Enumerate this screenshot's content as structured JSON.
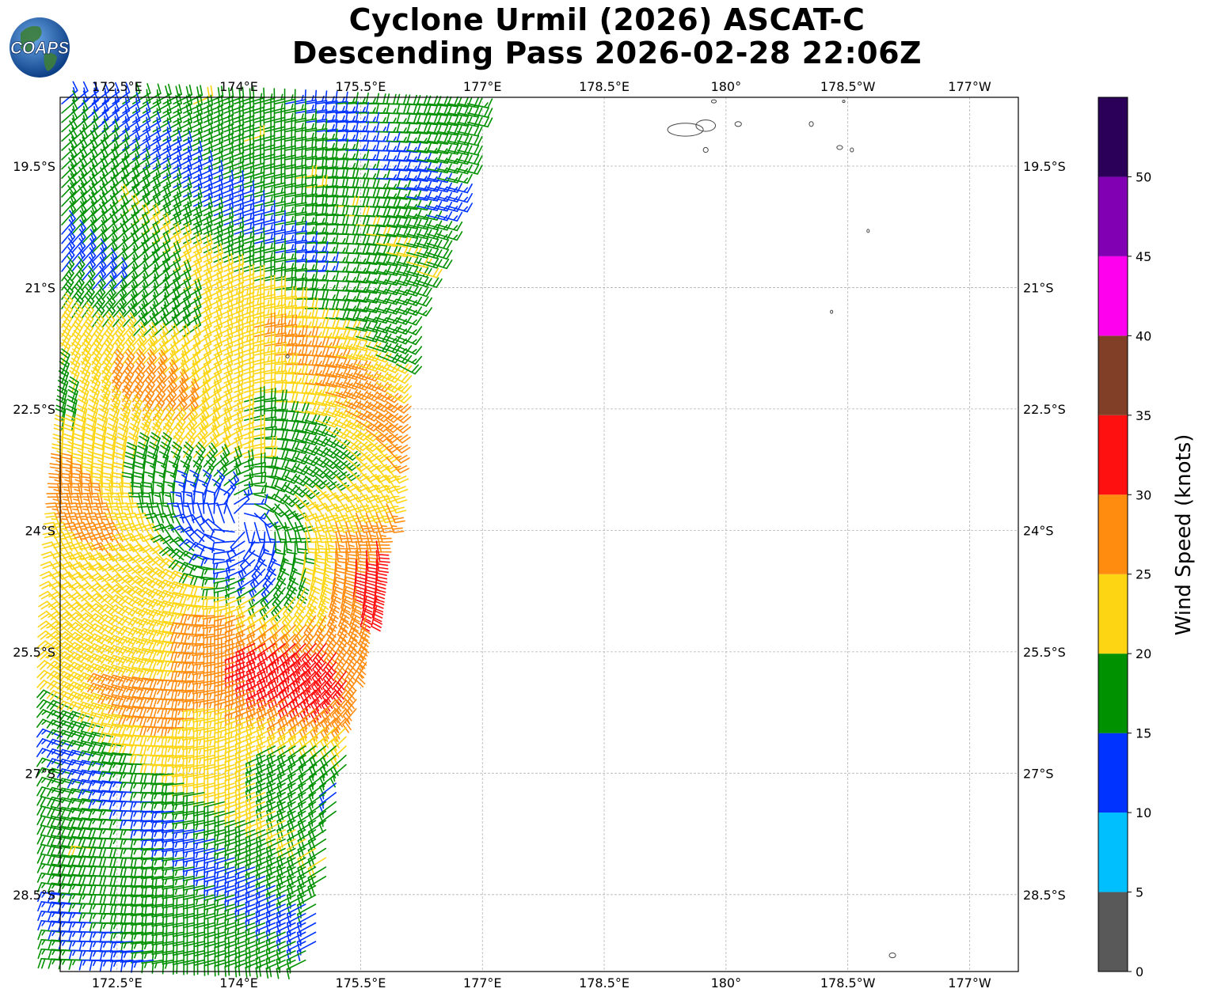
{
  "title": {
    "line1": "Cyclone Urmil (2026) ASCAT-C",
    "line2": "Descending Pass 2026-02-28 22:06Z"
  },
  "logo": {
    "text": "COAPS",
    "colors": {
      "ocean": "#1f5fae",
      "land": "#3d7d3a"
    }
  },
  "map": {
    "extent": {
      "lon_min": 171.8,
      "lon_max": 183.6,
      "lat_min": -29.45,
      "lat_max": -18.65
    },
    "top_lon_labels": [
      "172.5°E",
      "174°E",
      "175.5°E",
      "177°E",
      "178.5°E",
      "180°",
      "178.5°W",
      "177°W"
    ],
    "bottom_lon_labels": [
      "172.5°E",
      "174°E",
      "175.5°E",
      "177°E",
      "178.5°E",
      "180°",
      "178.5°W",
      "177°W"
    ],
    "lon_ticks": [
      172.5,
      174,
      175.5,
      177,
      178.5,
      180,
      181.5,
      183
    ],
    "left_lat_labels": [
      "19.5°S",
      "21°S",
      "22.5°S",
      "24°S",
      "25.5°S",
      "27°S",
      "28.5°S"
    ],
    "right_lat_labels": [
      "19.5°S",
      "21°S",
      "22.5°S",
      "24°S",
      "25.5°S",
      "27°S",
      "28.5°S"
    ],
    "lat_ticks": [
      -19.5,
      -21,
      -22.5,
      -24,
      -25.5,
      -27,
      -28.5
    ],
    "swath": {
      "center_lat": -23.9,
      "center_lon": 174.0,
      "east_edge": [
        [
          -18.65,
          176.9
        ],
        [
          -20,
          176.6
        ],
        [
          -21.5,
          176.0
        ],
        [
          -23,
          175.85
        ],
        [
          -24.5,
          175.8
        ],
        [
          -26,
          175.5
        ],
        [
          -27.5,
          175.2
        ],
        [
          -29.45,
          174.9
        ]
      ]
    },
    "islands": [
      {
        "lat": -19.05,
        "lon": 179.5,
        "rx": 0.22,
        "ry": 0.08
      },
      {
        "lat": -19.0,
        "lon": 179.75,
        "rx": 0.12,
        "ry": 0.07
      },
      {
        "lat": -19.3,
        "lon": 179.75,
        "rx": 0.03,
        "ry": 0.03
      },
      {
        "lat": -18.98,
        "lon": 180.15,
        "rx": 0.04,
        "ry": 0.03
      },
      {
        "lat": -18.7,
        "lon": 179.85,
        "rx": 0.03,
        "ry": 0.02
      },
      {
        "lat": -18.98,
        "lon": 181.05,
        "rx": 0.025,
        "ry": 0.03
      },
      {
        "lat": -19.27,
        "lon": 181.4,
        "rx": 0.035,
        "ry": 0.025
      },
      {
        "lat": -19.3,
        "lon": 181.55,
        "rx": 0.02,
        "ry": 0.025
      },
      {
        "lat": -18.7,
        "lon": 181.45,
        "rx": 0.015,
        "ry": 0.015
      },
      {
        "lat": -20.3,
        "lon": 181.75,
        "rx": 0.01,
        "ry": 0.02
      },
      {
        "lat": -21.3,
        "lon": 181.3,
        "rx": 0.01,
        "ry": 0.02
      },
      {
        "lat": -21.85,
        "lon": 174.6,
        "rx": 0.02,
        "ry": 0.02
      },
      {
        "lat": -29.25,
        "lon": 182.05,
        "rx": 0.04,
        "ry": 0.03
      }
    ]
  },
  "colorbar": {
    "title": "Wind Speed (knots)",
    "bounds": [
      0,
      5,
      10,
      15,
      20,
      25,
      30,
      35,
      40,
      45,
      50,
      55
    ],
    "tick_labels": [
      "0",
      "5",
      "10",
      "15",
      "20",
      "25",
      "30",
      "35",
      "40",
      "45",
      "50"
    ],
    "colors": [
      "#595959",
      "#00bfff",
      "#0033ff",
      "#009100",
      "#fdd512",
      "#ff8c0f",
      "#ff1010",
      "#823f27",
      "#ff00ee",
      "#8100b4",
      "#2b0058"
    ]
  }
}
